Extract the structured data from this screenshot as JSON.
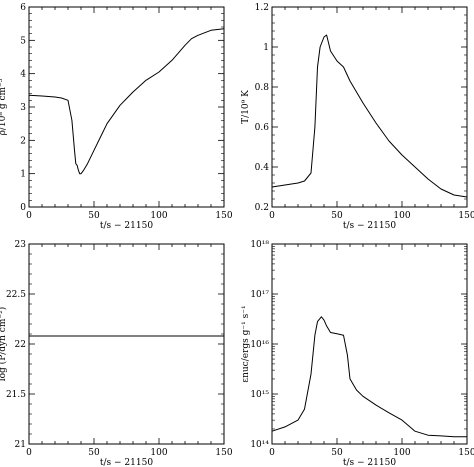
{
  "chart_data": [
    {
      "id": "density",
      "type": "line",
      "xlabel": "t/s − 21150",
      "ylabel": "ρ/10⁸ g cm⁻³",
      "xlim": [
        0,
        150
      ],
      "ylim": [
        0,
        6
      ],
      "yscale": "linear",
      "xticks": [
        "0",
        "50",
        "100",
        "150"
      ],
      "yticks": [
        "0",
        "1",
        "2",
        "3",
        "4",
        "5",
        "6"
      ],
      "x": [
        0,
        10,
        20,
        25,
        30,
        33,
        35,
        36,
        37,
        38,
        39,
        40,
        42,
        45,
        50,
        55,
        60,
        70,
        80,
        90,
        100,
        110,
        120,
        125,
        130,
        140,
        150
      ],
      "y": [
        3.35,
        3.33,
        3.3,
        3.27,
        3.2,
        2.6,
        1.7,
        1.3,
        1.25,
        1.1,
        1.0,
        1.0,
        1.1,
        1.3,
        1.7,
        2.1,
        2.5,
        3.05,
        3.45,
        3.8,
        4.05,
        4.4,
        4.85,
        5.05,
        5.15,
        5.3,
        5.35
      ]
    },
    {
      "id": "temperature",
      "type": "line",
      "xlabel": "t/s − 21150",
      "ylabel": "T/10⁹ K",
      "xlim": [
        0,
        150
      ],
      "ylim": [
        0.2,
        1.2
      ],
      "yscale": "linear",
      "xticks": [
        "0",
        "50",
        "100",
        "150"
      ],
      "yticks": [
        "0.2",
        "0.4",
        "0.6",
        "0.8",
        "1",
        "1.2"
      ],
      "x": [
        0,
        10,
        20,
        25,
        30,
        33,
        35,
        37,
        40,
        42,
        45,
        50,
        55,
        60,
        70,
        80,
        90,
        100,
        110,
        120,
        130,
        140,
        150
      ],
      "y": [
        0.3,
        0.31,
        0.32,
        0.33,
        0.37,
        0.6,
        0.9,
        1.0,
        1.05,
        1.06,
        0.98,
        0.93,
        0.9,
        0.83,
        0.72,
        0.62,
        0.53,
        0.46,
        0.4,
        0.34,
        0.29,
        0.26,
        0.25
      ]
    },
    {
      "id": "pressure",
      "type": "line",
      "xlabel": "t/s − 21150",
      "ylabel": "log (P/dyn cm⁻²)",
      "xlim": [
        0,
        150
      ],
      "ylim": [
        21,
        23
      ],
      "yscale": "linear",
      "xticks": [
        "0",
        "50",
        "100",
        "150"
      ],
      "yticks": [
        "21",
        "21.5",
        "22",
        "22.5",
        "23"
      ],
      "x": [
        0,
        150
      ],
      "y": [
        22.08,
        22.08
      ]
    },
    {
      "id": "energy",
      "type": "line",
      "xlabel": "t/s − 21150",
      "ylabel": "εnuc/ergs g⁻¹ s⁻¹",
      "xlim": [
        0,
        150
      ],
      "ylim": [
        100000000000000.0,
        1e+18
      ],
      "yscale": "log",
      "xticks": [
        "0",
        "50",
        "100",
        "150"
      ],
      "yticks": [
        "10¹⁴",
        "10¹⁵",
        "10¹⁶",
        "10¹⁷",
        "10¹⁸"
      ],
      "x": [
        0,
        10,
        20,
        25,
        30,
        33,
        35,
        38,
        40,
        42,
        45,
        50,
        55,
        58,
        60,
        65,
        70,
        80,
        90,
        100,
        110,
        120,
        130,
        140,
        150
      ],
      "y": [
        180000000000000,
        220000000000000,
        300000000000000,
        500000000000000,
        2500000000000000,
        15000000000000000,
        28000000000000000,
        35000000000000000,
        30000000000000000,
        23000000000000000,
        17000000000000000,
        16000000000000000,
        15000000000000000,
        6000000000000000,
        2000000000000000,
        1200000000000000,
        900000000000000,
        600000000000000,
        420000000000000,
        300000000000000,
        180000000000000,
        150000000000000,
        145000000000000,
        140000000000000,
        140000000000000
      ]
    }
  ]
}
